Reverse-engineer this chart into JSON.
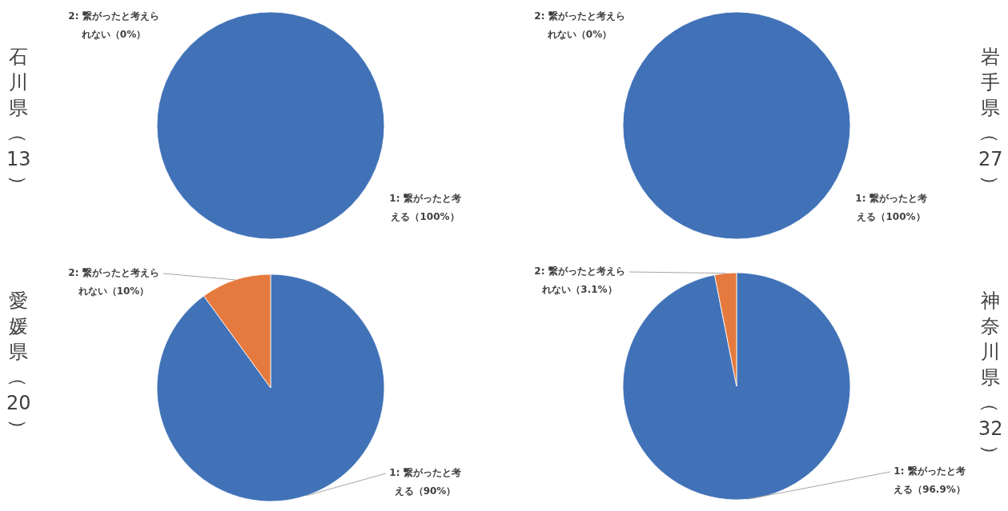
{
  "chart_data": [
    {
      "type": "pie",
      "title": "石川県（13）",
      "categories": [
        "1: 繋がったと考える",
        "2: 繋がったと考えられない"
      ],
      "values": [
        100,
        0
      ],
      "value_labels": [
        "（100%）",
        "（0%）"
      ],
      "colors": [
        "#4172b8",
        "#e57a3e"
      ]
    },
    {
      "type": "pie",
      "title": "岩手県（27）",
      "categories": [
        "1: 繋がったと考える",
        "2: 繋がったと考えられない"
      ],
      "values": [
        100,
        0
      ],
      "value_labels": [
        "（100%）",
        "（0%）"
      ],
      "colors": [
        "#4172b8",
        "#e57a3e"
      ]
    },
    {
      "type": "pie",
      "title": "愛媛県（20）",
      "categories": [
        "1: 繋がったと考える",
        "2: 繋がったと考えられない"
      ],
      "values": [
        90,
        10
      ],
      "value_labels": [
        "（90%）",
        "（10%）"
      ],
      "colors": [
        "#4172b8",
        "#e57a3e"
      ]
    },
    {
      "type": "pie",
      "title": "神奈川県（32）",
      "categories": [
        "1: 繋がったと考える",
        "2: 繋がったと考えられない"
      ],
      "values": [
        96.9,
        3.1
      ],
      "value_labels": [
        "（96.9%）",
        "（3.1%）"
      ],
      "colors": [
        "#4172b8",
        "#e57a3e"
      ]
    }
  ]
}
